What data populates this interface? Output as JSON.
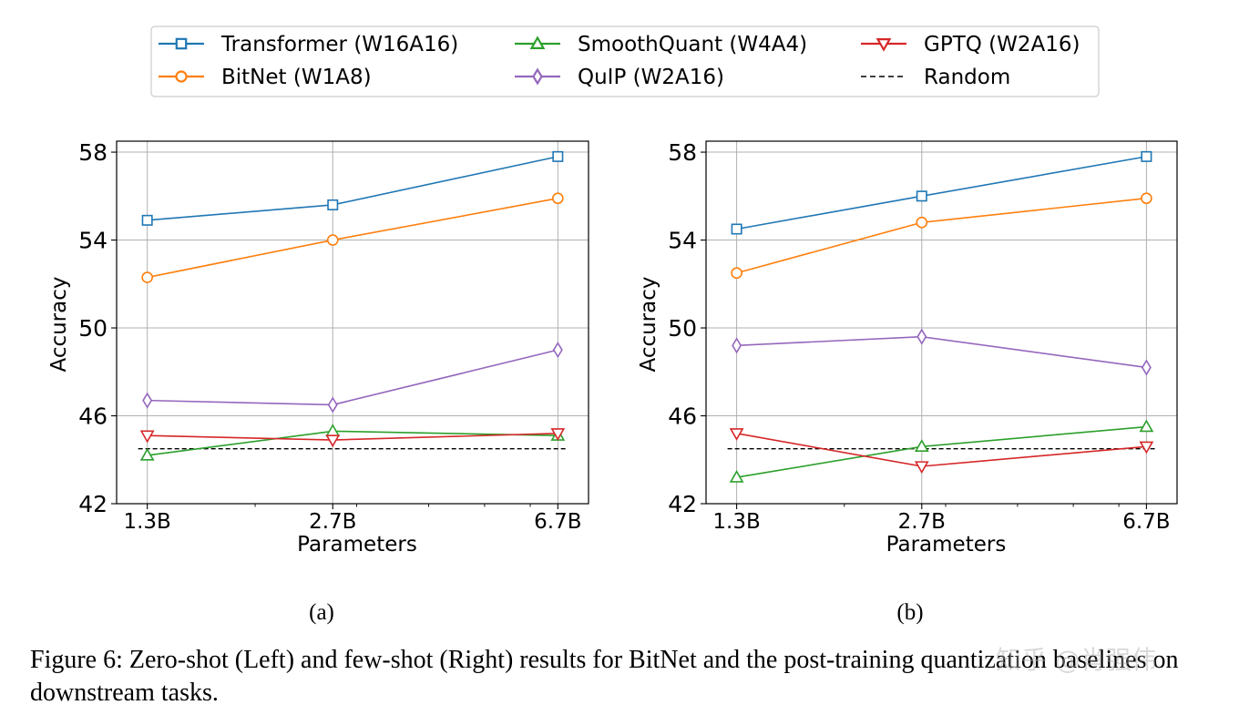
{
  "legend": {
    "entries": [
      {
        "key": "transformer",
        "label": "Transformer (W16A16)",
        "color": "#1f77b4",
        "marker": "square"
      },
      {
        "key": "bitnet",
        "label": "BitNet (W1A8)",
        "color": "#ff7f0e",
        "marker": "circle"
      },
      {
        "key": "smoothquant",
        "label": "SmoothQuant (W4A4)",
        "color": "#2ca02c",
        "marker": "triangle-up"
      },
      {
        "key": "quip",
        "label": "QuIP (W2A16)",
        "color": "#9467bd",
        "marker": "diamond"
      },
      {
        "key": "gptq",
        "label": "GPTQ (W2A16)",
        "color": "#d62728",
        "marker": "triangle-down"
      },
      {
        "key": "random",
        "label": "Random",
        "color": "#000000",
        "marker": "dashed-line"
      }
    ]
  },
  "chart_data": [
    {
      "type": "line",
      "panel_label": "(a)",
      "xlabel": "Parameters",
      "ylabel": "Accuracy",
      "x_type": "log",
      "categories": [
        "1.3B",
        "2.7B",
        "6.7B"
      ],
      "x": [
        1.3,
        2.7,
        6.7
      ],
      "ylim": [
        42,
        58.5
      ],
      "yticks": [
        42,
        46,
        50,
        54,
        58
      ],
      "grid": true,
      "series": [
        {
          "name": "Transformer (W16A16)",
          "values": [
            54.9,
            55.6,
            57.8
          ]
        },
        {
          "name": "BitNet (W1A8)",
          "values": [
            52.3,
            54.0,
            55.9
          ]
        },
        {
          "name": "SmoothQuant (W4A4)",
          "values": [
            44.2,
            45.3,
            45.1
          ]
        },
        {
          "name": "QuIP (W2A16)",
          "values": [
            46.7,
            46.5,
            49.0
          ]
        },
        {
          "name": "GPTQ (W2A16)",
          "values": [
            45.1,
            44.9,
            45.2
          ]
        }
      ],
      "random_baseline": 44.5
    },
    {
      "type": "line",
      "panel_label": "(b)",
      "xlabel": "Parameters",
      "ylabel": "Accuracy",
      "x_type": "log",
      "categories": [
        "1.3B",
        "2.7B",
        "6.7B"
      ],
      "x": [
        1.3,
        2.7,
        6.7
      ],
      "ylim": [
        42,
        58.5
      ],
      "yticks": [
        42,
        46,
        50,
        54,
        58
      ],
      "grid": true,
      "series": [
        {
          "name": "Transformer (W16A16)",
          "values": [
            54.5,
            56.0,
            57.8
          ]
        },
        {
          "name": "BitNet (W1A8)",
          "values": [
            52.5,
            54.8,
            55.9
          ]
        },
        {
          "name": "SmoothQuant (W4A4)",
          "values": [
            43.2,
            44.6,
            45.5
          ]
        },
        {
          "name": "QuIP (W2A16)",
          "values": [
            49.2,
            49.6,
            48.2
          ]
        },
        {
          "name": "GPTQ (W2A16)",
          "values": [
            45.2,
            43.7,
            44.6
          ]
        }
      ],
      "random_baseline": 44.5
    }
  ],
  "caption": "Figure 6: Zero-shot (Left) and few-shot (Right) results for BitNet and the post-training quantization baselines on downstream tasks.",
  "watermark": "知乎 @肖强伟"
}
